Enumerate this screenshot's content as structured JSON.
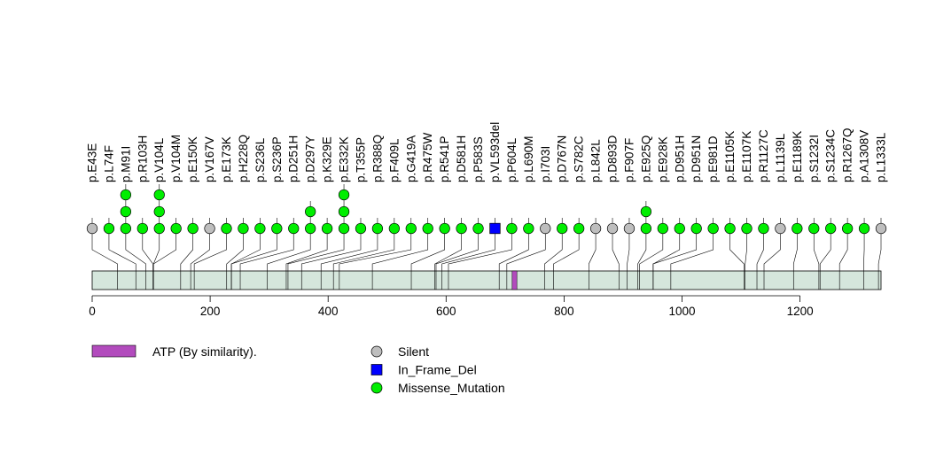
{
  "chart_data": {
    "type": "lollipop",
    "xlim": [
      0,
      1340
    ],
    "xticks": [
      0,
      200,
      400,
      600,
      800,
      1000,
      1200
    ],
    "colors": {
      "Silent": "#bebebe",
      "In_Frame_Del": "#0000ff",
      "Missense_Mutation": "#00ee00",
      "domain": "#b24bbd",
      "protein": "#d5e6dc"
    },
    "mutations": [
      {
        "label": "p.E43E",
        "pos": 43,
        "type": "Silent",
        "count": 1
      },
      {
        "label": "p.L74F",
        "pos": 74,
        "type": "Missense_Mutation",
        "count": 1
      },
      {
        "label": "p.M91I",
        "pos": 91,
        "type": "Missense_Mutation",
        "count": 3
      },
      {
        "label": "p.R103H",
        "pos": 103,
        "type": "Missense_Mutation",
        "count": 1
      },
      {
        "label": "p.V104L",
        "pos": 104,
        "type": "Missense_Mutation",
        "count": 3
      },
      {
        "label": "p.V104M",
        "pos": 104,
        "type": "Missense_Mutation",
        "count": 1
      },
      {
        "label": "p.E150K",
        "pos": 150,
        "type": "Missense_Mutation",
        "count": 1
      },
      {
        "label": "p.V167V",
        "pos": 167,
        "type": "Silent",
        "count": 1
      },
      {
        "label": "p.E173K",
        "pos": 173,
        "type": "Missense_Mutation",
        "count": 1
      },
      {
        "label": "p.H228Q",
        "pos": 228,
        "type": "Missense_Mutation",
        "count": 1
      },
      {
        "label": "p.S236L",
        "pos": 236,
        "type": "Missense_Mutation",
        "count": 1
      },
      {
        "label": "p.S236P",
        "pos": 236,
        "type": "Missense_Mutation",
        "count": 1
      },
      {
        "label": "p.D251H",
        "pos": 251,
        "type": "Missense_Mutation",
        "count": 1
      },
      {
        "label": "p.D297Y",
        "pos": 297,
        "type": "Missense_Mutation",
        "count": 2
      },
      {
        "label": "p.K329E",
        "pos": 329,
        "type": "Missense_Mutation",
        "count": 1
      },
      {
        "label": "p.E332K",
        "pos": 332,
        "type": "Missense_Mutation",
        "count": 3
      },
      {
        "label": "p.T355P",
        "pos": 355,
        "type": "Missense_Mutation",
        "count": 1
      },
      {
        "label": "p.R388Q",
        "pos": 388,
        "type": "Missense_Mutation",
        "count": 1
      },
      {
        "label": "p.F409L",
        "pos": 409,
        "type": "Missense_Mutation",
        "count": 1
      },
      {
        "label": "p.G419A",
        "pos": 419,
        "type": "Missense_Mutation",
        "count": 1
      },
      {
        "label": "p.R475W",
        "pos": 475,
        "type": "Missense_Mutation",
        "count": 1
      },
      {
        "label": "p.R541P",
        "pos": 541,
        "type": "Missense_Mutation",
        "count": 1
      },
      {
        "label": "p.D581H",
        "pos": 581,
        "type": "Missense_Mutation",
        "count": 1
      },
      {
        "label": "p.P583S",
        "pos": 583,
        "type": "Missense_Mutation",
        "count": 1
      },
      {
        "label": "p.VL593del",
        "pos": 593,
        "type": "In_Frame_Del",
        "count": 1
      },
      {
        "label": "p.P604L",
        "pos": 604,
        "type": "Missense_Mutation",
        "count": 1
      },
      {
        "label": "p.L690M",
        "pos": 690,
        "type": "Missense_Mutation",
        "count": 1
      },
      {
        "label": "p.I703I",
        "pos": 703,
        "type": "Silent",
        "count": 1
      },
      {
        "label": "p.D767N",
        "pos": 767,
        "type": "Missense_Mutation",
        "count": 1
      },
      {
        "label": "p.S782C",
        "pos": 782,
        "type": "Missense_Mutation",
        "count": 1
      },
      {
        "label": "p.L842L",
        "pos": 842,
        "type": "Silent",
        "count": 1
      },
      {
        "label": "p.D893D",
        "pos": 893,
        "type": "Silent",
        "count": 1
      },
      {
        "label": "p.F907F",
        "pos": 907,
        "type": "Silent",
        "count": 1
      },
      {
        "label": "p.E925Q",
        "pos": 925,
        "type": "Missense_Mutation",
        "count": 2
      },
      {
        "label": "p.E928K",
        "pos": 928,
        "type": "Missense_Mutation",
        "count": 1
      },
      {
        "label": "p.D951H",
        "pos": 951,
        "type": "Missense_Mutation",
        "count": 1
      },
      {
        "label": "p.D951N",
        "pos": 951,
        "type": "Missense_Mutation",
        "count": 1
      },
      {
        "label": "p.E981D",
        "pos": 981,
        "type": "Missense_Mutation",
        "count": 1
      },
      {
        "label": "p.E1105K",
        "pos": 1105,
        "type": "Missense_Mutation",
        "count": 1
      },
      {
        "label": "p.E1107K",
        "pos": 1107,
        "type": "Missense_Mutation",
        "count": 1
      },
      {
        "label": "p.R1127C",
        "pos": 1127,
        "type": "Missense_Mutation",
        "count": 1
      },
      {
        "label": "p.L1139L",
        "pos": 1139,
        "type": "Silent",
        "count": 1
      },
      {
        "label": "p.E1189K",
        "pos": 1189,
        "type": "Missense_Mutation",
        "count": 1
      },
      {
        "label": "p.S1232I",
        "pos": 1232,
        "type": "Missense_Mutation",
        "count": 1
      },
      {
        "label": "p.S1234C",
        "pos": 1234,
        "type": "Missense_Mutation",
        "count": 1
      },
      {
        "label": "p.R1267Q",
        "pos": 1267,
        "type": "Missense_Mutation",
        "count": 1
      },
      {
        "label": "p.A1308V",
        "pos": 1308,
        "type": "Missense_Mutation",
        "count": 1
      },
      {
        "label": "p.L1333L",
        "pos": 1333,
        "type": "Silent",
        "count": 1
      }
    ],
    "domains": [
      {
        "name": "ATP (By similarity).",
        "start": 712,
        "end": 720
      }
    ],
    "legend": {
      "domain_label": "ATP (By similarity).",
      "items": [
        {
          "label": "Silent",
          "type": "Silent",
          "shape": "circle"
        },
        {
          "label": "In_Frame_Del",
          "type": "In_Frame_Del",
          "shape": "square"
        },
        {
          "label": "Missense_Mutation",
          "type": "Missense_Mutation",
          "shape": "circle"
        }
      ]
    }
  }
}
